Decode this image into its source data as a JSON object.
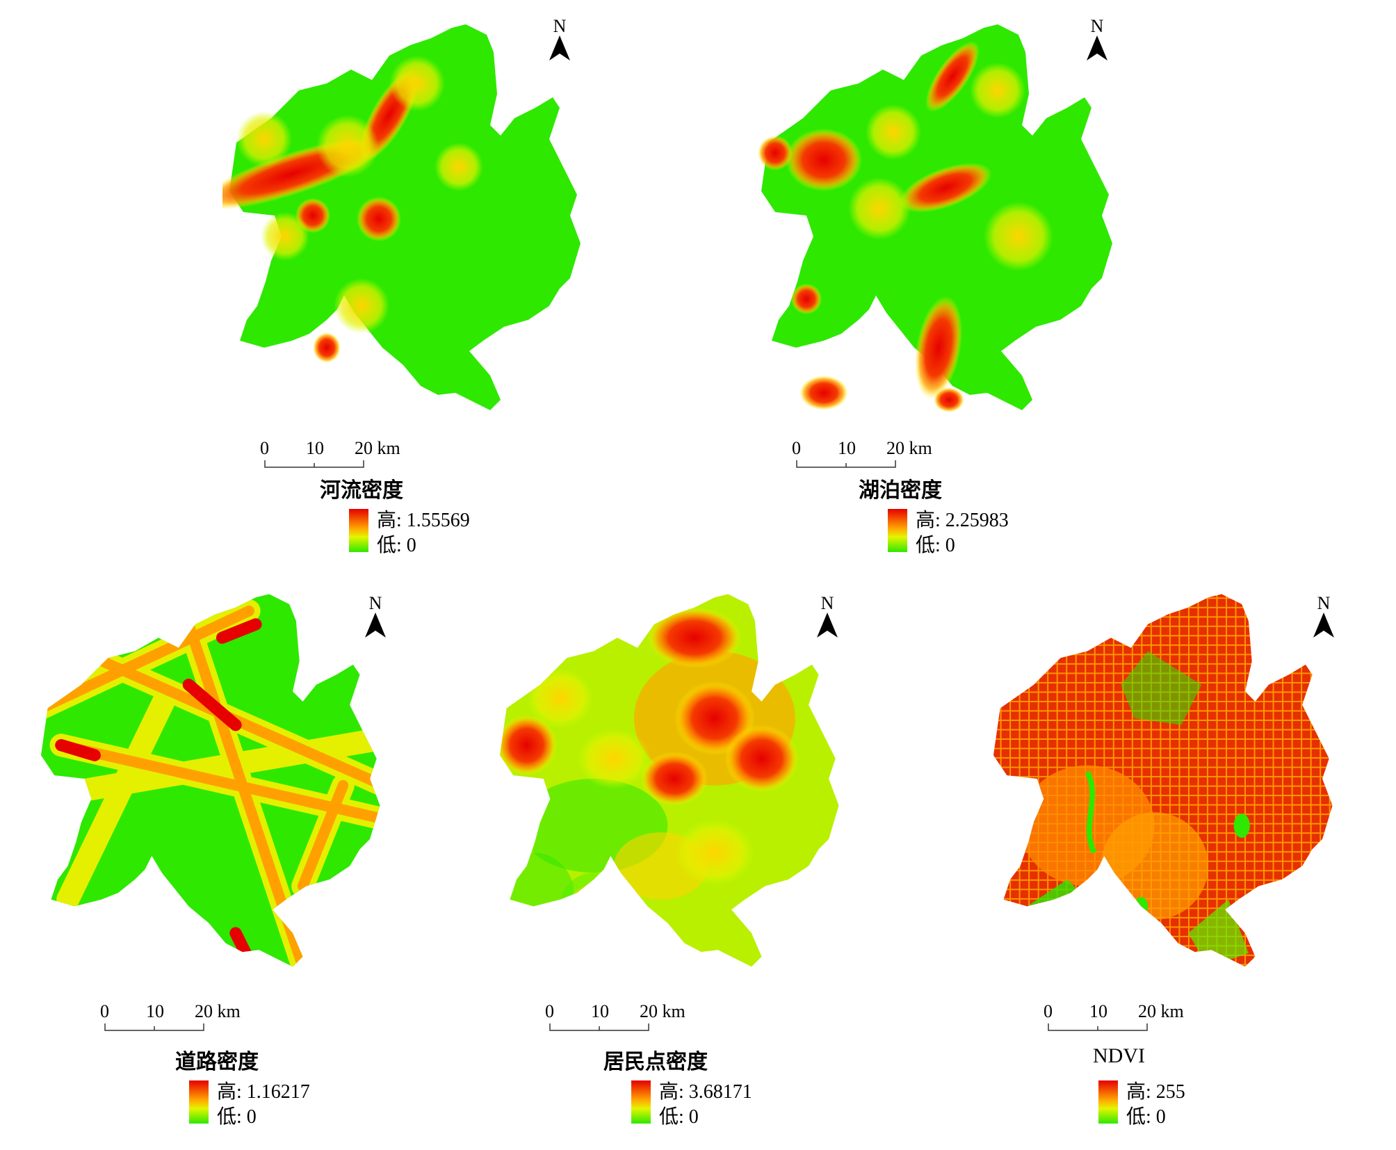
{
  "north_label": "N",
  "scale": {
    "ticks": [
      "0",
      "10",
      "20 km"
    ]
  },
  "colors": {
    "high": "#e60000",
    "mid": "#ffa500",
    "low": "#00e600"
  },
  "panels": [
    {
      "id": "river",
      "title": "河流密度",
      "legend_high": "高: 1.55569",
      "legend_low": "低: 0"
    },
    {
      "id": "lake",
      "title": "湖泊密度",
      "legend_high": "高: 2.25983",
      "legend_low": "低: 0"
    },
    {
      "id": "road",
      "title": "道路密度",
      "legend_high": "高: 1.16217",
      "legend_low": "低: 0"
    },
    {
      "id": "settlement",
      "title": "居民点密度",
      "legend_high": "高: 3.68171",
      "legend_low": "低: 0"
    },
    {
      "id": "ndvi",
      "title": "NDVI",
      "legend_high": "高: 255",
      "legend_low": "低: 0"
    }
  ]
}
